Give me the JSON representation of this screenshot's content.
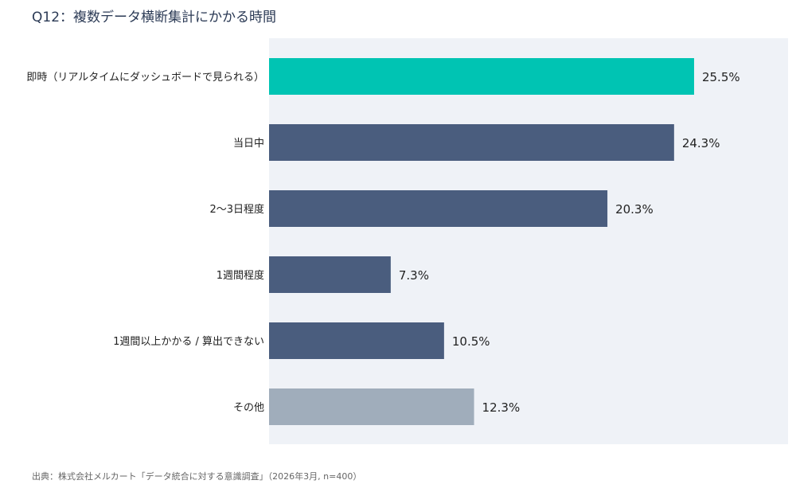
{
  "title": "Q12：複数データ横断集計にかかる時間",
  "source": "出典：株式会社メルカート「データ統合に対する意識調査」（2026年3月, n=400）",
  "chart_data": {
    "type": "bar",
    "orientation": "horizontal",
    "categories": [
      "即時（リアルタイムにダッシュボードで見られる）",
      "当日中",
      "2〜3日程度",
      "1週間程度",
      "1週間以上かかる / 算出できない",
      "その他"
    ],
    "values": [
      25.5,
      24.3,
      20.3,
      7.3,
      10.5,
      12.3
    ],
    "value_labels": [
      "25.5%",
      "24.3%",
      "20.3%",
      "7.3%",
      "10.5%",
      "12.3%"
    ],
    "unit": "%",
    "colors": [
      "#00c4b3",
      "#4a5d7e",
      "#4a5d7e",
      "#4a5d7e",
      "#4a5d7e",
      "#a0adbb"
    ],
    "title": "Q12：複数データ横断集計にかかる時間",
    "xlabel": "",
    "ylabel": "",
    "grid": false,
    "legend": "none"
  }
}
